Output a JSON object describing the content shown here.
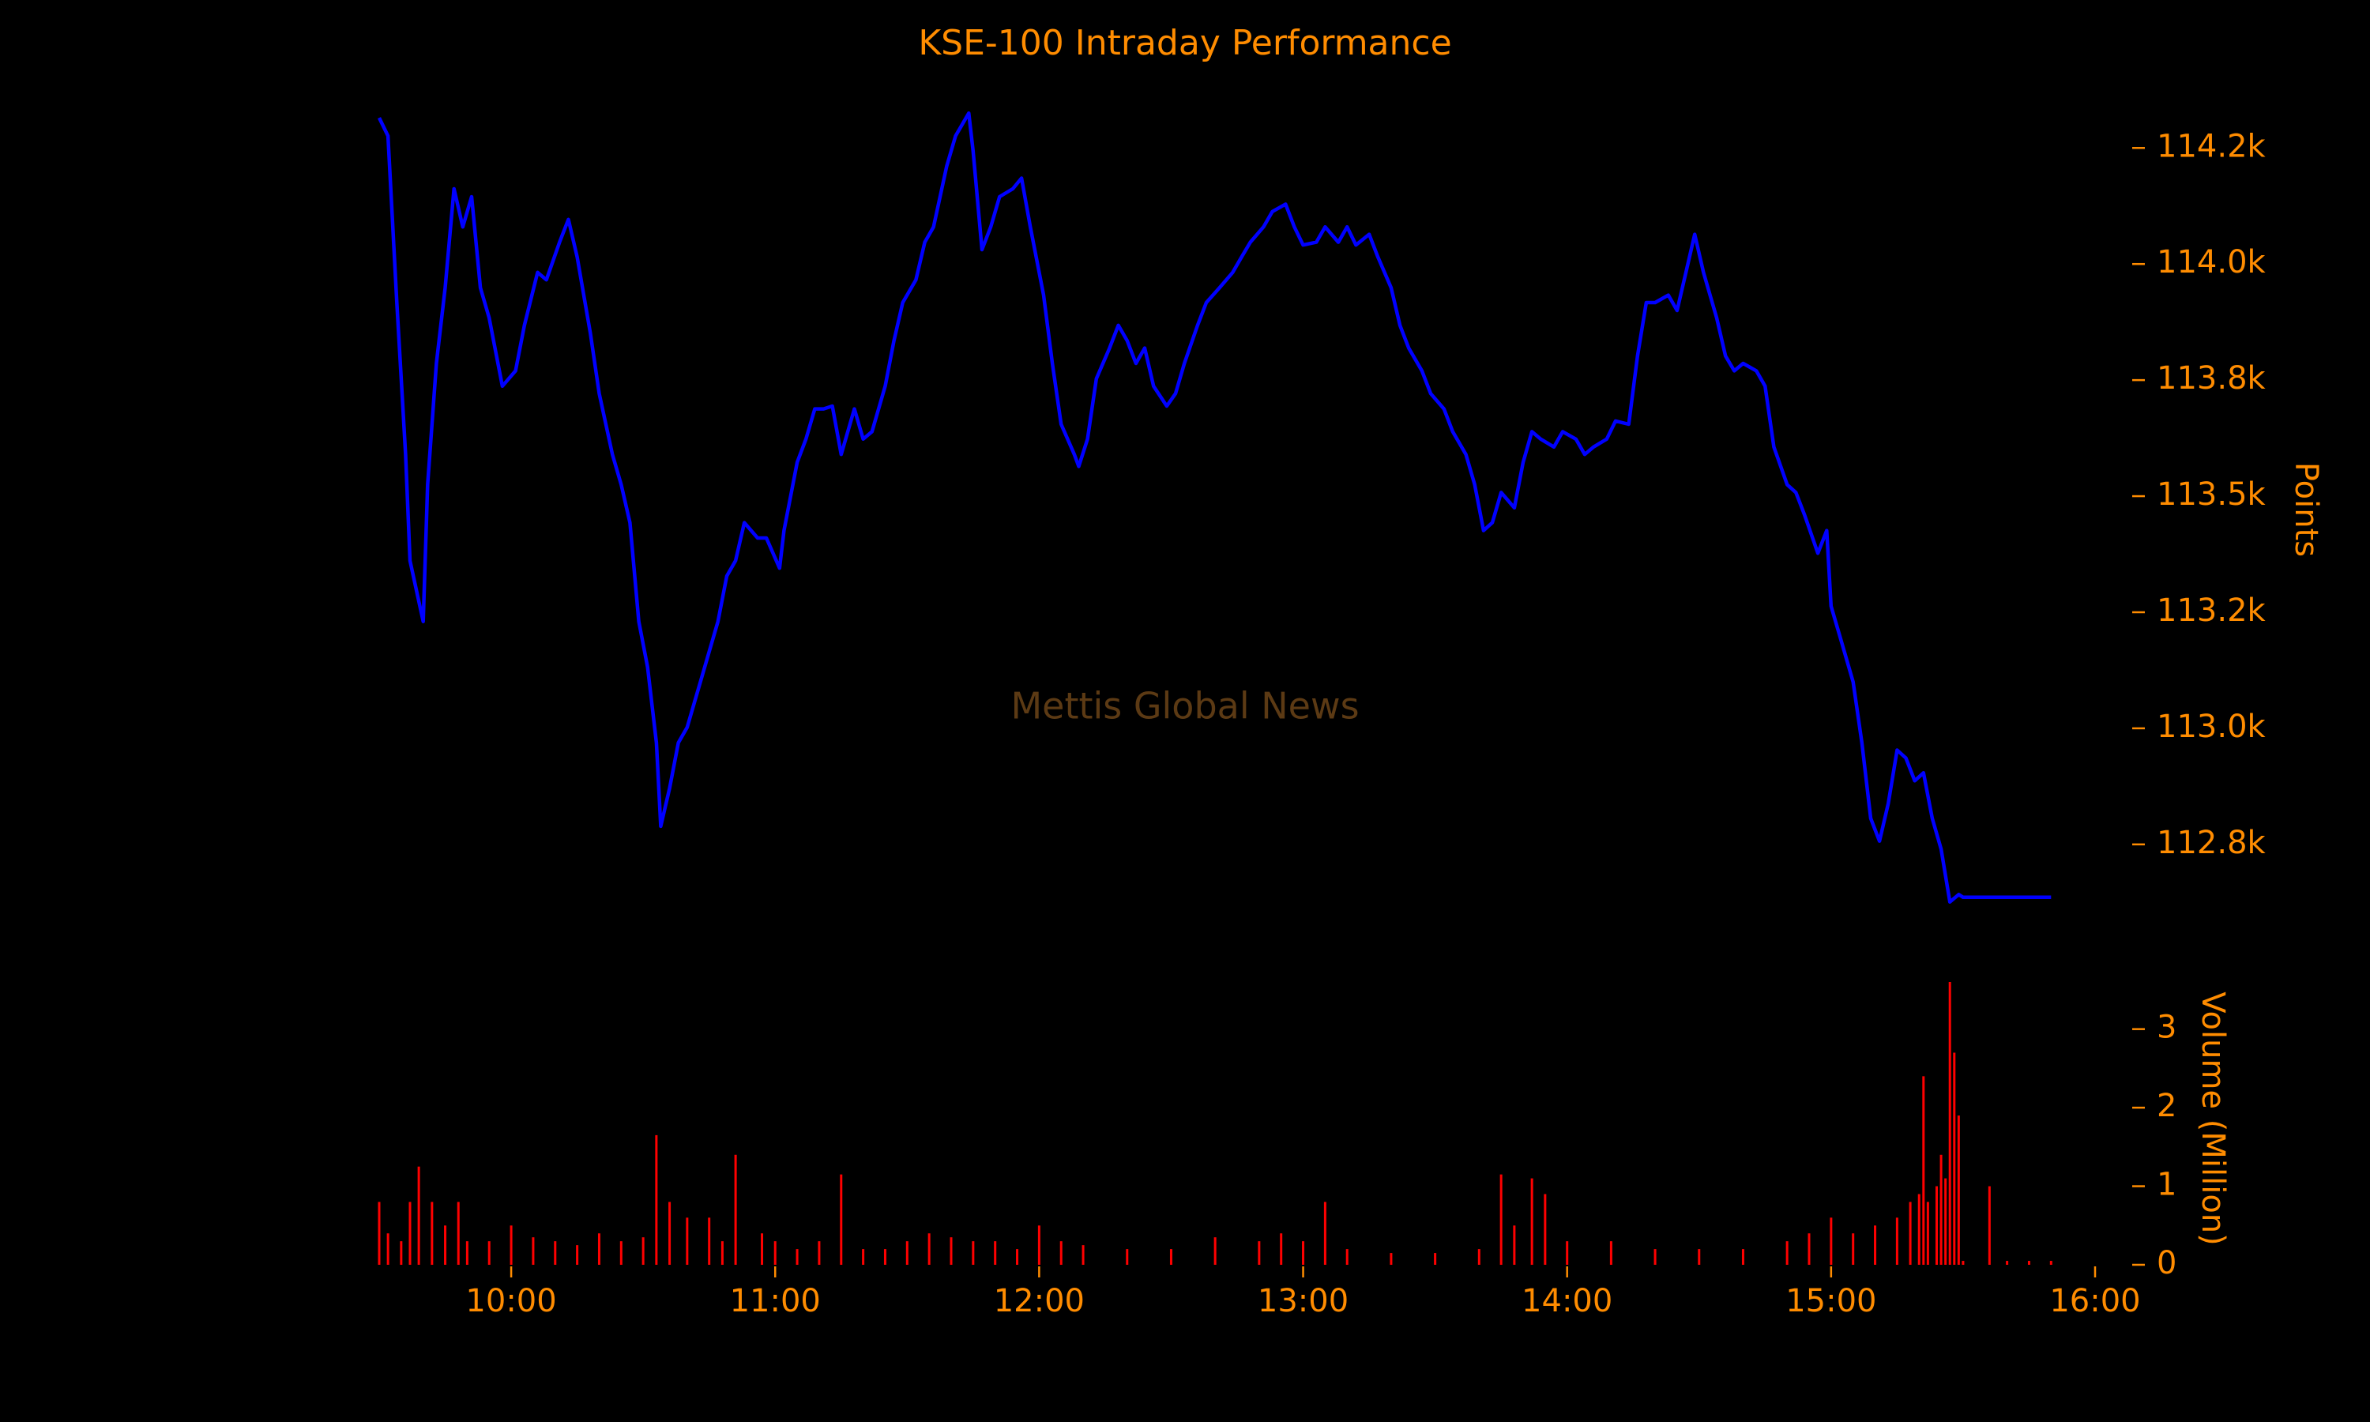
{
  "chart_data": [
    {
      "type": "line",
      "title": "KSE-100 Intraday Performance",
      "annotation": "Mettis Global News",
      "ylabel": "Points",
      "color": "#0000ff",
      "xlim": [
        "09:30",
        "16:00"
      ],
      "ylim": [
        112600,
        114390
      ],
      "yticks": [
        {
          "value": 112750,
          "label": "112.8k"
        },
        {
          "value": 113000,
          "label": "113.0k"
        },
        {
          "value": 113250,
          "label": "113.2k"
        },
        {
          "value": 113500,
          "label": "113.5k"
        },
        {
          "value": 113750,
          "label": "113.8k"
        },
        {
          "value": 114000,
          "label": "114.0k"
        },
        {
          "value": 114250,
          "label": "114.2k"
        }
      ],
      "x": [
        "09:30",
        "09:32",
        "09:34",
        "09:36",
        "09:37",
        "09:40",
        "09:41",
        "09:43",
        "09:45",
        "09:47",
        "09:49",
        "09:51",
        "09:53",
        "09:55",
        "09:58",
        "10:01",
        "10:03",
        "10:06",
        "10:08",
        "10:11",
        "10:13",
        "10:15",
        "10:18",
        "10:20",
        "10:23",
        "10:25",
        "10:27",
        "10:29",
        "10:31",
        "10:33",
        "10:34",
        "10:36",
        "10:38",
        "10:40",
        "10:43",
        "10:45",
        "10:47",
        "10:49",
        "10:51",
        "10:53",
        "10:56",
        "10:58",
        "11:01",
        "11:02",
        "11:05",
        "11:07",
        "11:09",
        "11:11",
        "11:13",
        "11:15",
        "11:18",
        "11:20",
        "11:22",
        "11:25",
        "11:27",
        "11:29",
        "11:32",
        "11:34",
        "11:36",
        "11:39",
        "11:41",
        "11:44",
        "11:45",
        "11:47",
        "11:49",
        "11:51",
        "11:54",
        "11:56",
        "11:58",
        "12:01",
        "12:03",
        "12:05",
        "12:08",
        "12:09",
        "12:11",
        "12:13",
        "12:16",
        "12:18",
        "12:20",
        "12:22",
        "12:24",
        "12:26",
        "12:29",
        "12:31",
        "12:33",
        "12:36",
        "12:38",
        "12:41",
        "12:44",
        "12:46",
        "12:48",
        "12:51",
        "12:53",
        "12:56",
        "12:58",
        "13:00",
        "13:03",
        "13:05",
        "13:08",
        "13:10",
        "13:12",
        "13:15",
        "13:17",
        "13:20",
        "13:22",
        "13:24",
        "13:27",
        "13:29",
        "13:32",
        "13:34",
        "13:37",
        "13:39",
        "13:41",
        "13:43",
        "13:45",
        "13:48",
        "13:50",
        "13:52",
        "13:54",
        "13:57",
        "13:59",
        "14:02",
        "14:04",
        "14:06",
        "14:09",
        "14:11",
        "14:14",
        "14:16",
        "14:18",
        "14:20",
        "14:23",
        "14:25",
        "14:27",
        "14:29",
        "14:31",
        "14:34",
        "14:36",
        "14:38",
        "14:40",
        "14:43",
        "14:45",
        "14:47",
        "14:50",
        "14:52",
        "14:54",
        "14:57",
        "14:59",
        "15:00",
        "15:02",
        "15:05",
        "15:07",
        "15:09",
        "15:11",
        "15:13",
        "15:15",
        "15:17",
        "15:19",
        "15:21",
        "15:23",
        "15:25",
        "15:27",
        "15:29",
        "15:30",
        "15:50"
      ],
      "values": [
        114315,
        114276,
        113917,
        113590,
        113361,
        113230,
        113525,
        113786,
        113949,
        114162,
        114080,
        114145,
        113949,
        113884,
        113737,
        113770,
        113868,
        113982,
        113966,
        114047,
        114096,
        114015,
        113851,
        113721,
        113590,
        113525,
        113443,
        113230,
        113132,
        112969,
        112789,
        112871,
        112969,
        113002,
        113100,
        113165,
        113230,
        113328,
        113361,
        113443,
        113410,
        113410,
        113345,
        113426,
        113573,
        113623,
        113688,
        113688,
        113694,
        113590,
        113688,
        113623,
        113639,
        113737,
        113835,
        113917,
        113966,
        114047,
        114080,
        114211,
        114276,
        114325,
        114243,
        114031,
        114080,
        114145,
        114162,
        114185,
        114080,
        113933,
        113786,
        113655,
        113590,
        113564,
        113623,
        113753,
        113819,
        113868,
        113835,
        113786,
        113819,
        113737,
        113694,
        113721,
        113786,
        113868,
        113917,
        113949,
        113982,
        114015,
        114047,
        114080,
        114113,
        114129,
        114080,
        114041,
        114047,
        114080,
        114047,
        114080,
        114041,
        114064,
        114015,
        113949,
        113868,
        113819,
        113770,
        113721,
        113688,
        113639,
        113590,
        113525,
        113426,
        113443,
        113508,
        113475,
        113573,
        113639,
        113623,
        113606,
        113639,
        113623,
        113590,
        113606,
        113623,
        113662,
        113655,
        113802,
        113917,
        113917,
        113933,
        113900,
        113982,
        114064,
        113982,
        113884,
        113802,
        113770,
        113786,
        113770,
        113737,
        113606,
        113525,
        113508,
        113459,
        113377,
        113426,
        113263,
        113198,
        113100,
        112969,
        112806,
        112757,
        112838,
        112953,
        112936,
        112887,
        112904,
        112806,
        112740,
        112626,
        112642,
        112636,
        112636
      ]
    },
    {
      "type": "bar",
      "ylabel": "Volume (Million)",
      "color": "#ff0000",
      "xlim": [
        "09:30",
        "16:00"
      ],
      "xticks": [
        "10:00",
        "11:00",
        "12:00",
        "13:00",
        "14:00",
        "15:00",
        "16:00"
      ],
      "ylim": [
        0,
        3.6
      ],
      "yticks": [
        0,
        1,
        2,
        3
      ],
      "x": [
        "09:30",
        "09:32",
        "09:35",
        "09:37",
        "09:39",
        "09:42",
        "09:45",
        "09:48",
        "09:50",
        "09:55",
        "10:00",
        "10:05",
        "10:10",
        "10:15",
        "10:20",
        "10:25",
        "10:30",
        "10:33",
        "10:36",
        "10:40",
        "10:45",
        "10:48",
        "10:51",
        "10:57",
        "11:00",
        "11:05",
        "11:10",
        "11:15",
        "11:20",
        "11:25",
        "11:30",
        "11:35",
        "11:40",
        "11:45",
        "11:50",
        "11:55",
        "12:00",
        "12:05",
        "12:10",
        "12:20",
        "12:30",
        "12:40",
        "12:50",
        "12:55",
        "13:00",
        "13:05",
        "13:10",
        "13:20",
        "13:30",
        "13:40",
        "13:45",
        "13:48",
        "13:52",
        "13:55",
        "14:00",
        "14:10",
        "14:20",
        "14:30",
        "14:40",
        "14:50",
        "14:55",
        "15:00",
        "15:05",
        "15:10",
        "15:15",
        "15:18",
        "15:20",
        "15:21",
        "15:22",
        "15:24",
        "15:25",
        "15:26",
        "15:27",
        "15:28",
        "15:29",
        "15:30",
        "15:36",
        "15:40",
        "15:45",
        "15:50"
      ],
      "values": [
        0.8,
        0.4,
        0.3,
        0.8,
        1.25,
        0.8,
        0.5,
        0.8,
        0.3,
        0.3,
        0.5,
        0.35,
        0.3,
        0.25,
        0.4,
        0.3,
        0.35,
        1.65,
        0.8,
        0.6,
        0.6,
        0.3,
        1.4,
        0.4,
        0.3,
        0.2,
        0.3,
        1.15,
        0.2,
        0.2,
        0.3,
        0.4,
        0.35,
        0.3,
        0.3,
        0.2,
        0.5,
        0.3,
        0.25,
        0.2,
        0.2,
        0.35,
        0.3,
        0.4,
        0.3,
        0.8,
        0.2,
        0.15,
        0.15,
        0.2,
        1.15,
        0.5,
        1.1,
        0.9,
        0.3,
        0.3,
        0.2,
        0.2,
        0.2,
        0.3,
        0.4,
        0.6,
        0.4,
        0.5,
        0.6,
        0.8,
        0.9,
        2.4,
        0.8,
        1.0,
        1.4,
        1.1,
        3.6,
        2.7,
        1.9,
        0.05,
        1.0,
        0.05,
        0.05,
        0.05
      ]
    }
  ]
}
